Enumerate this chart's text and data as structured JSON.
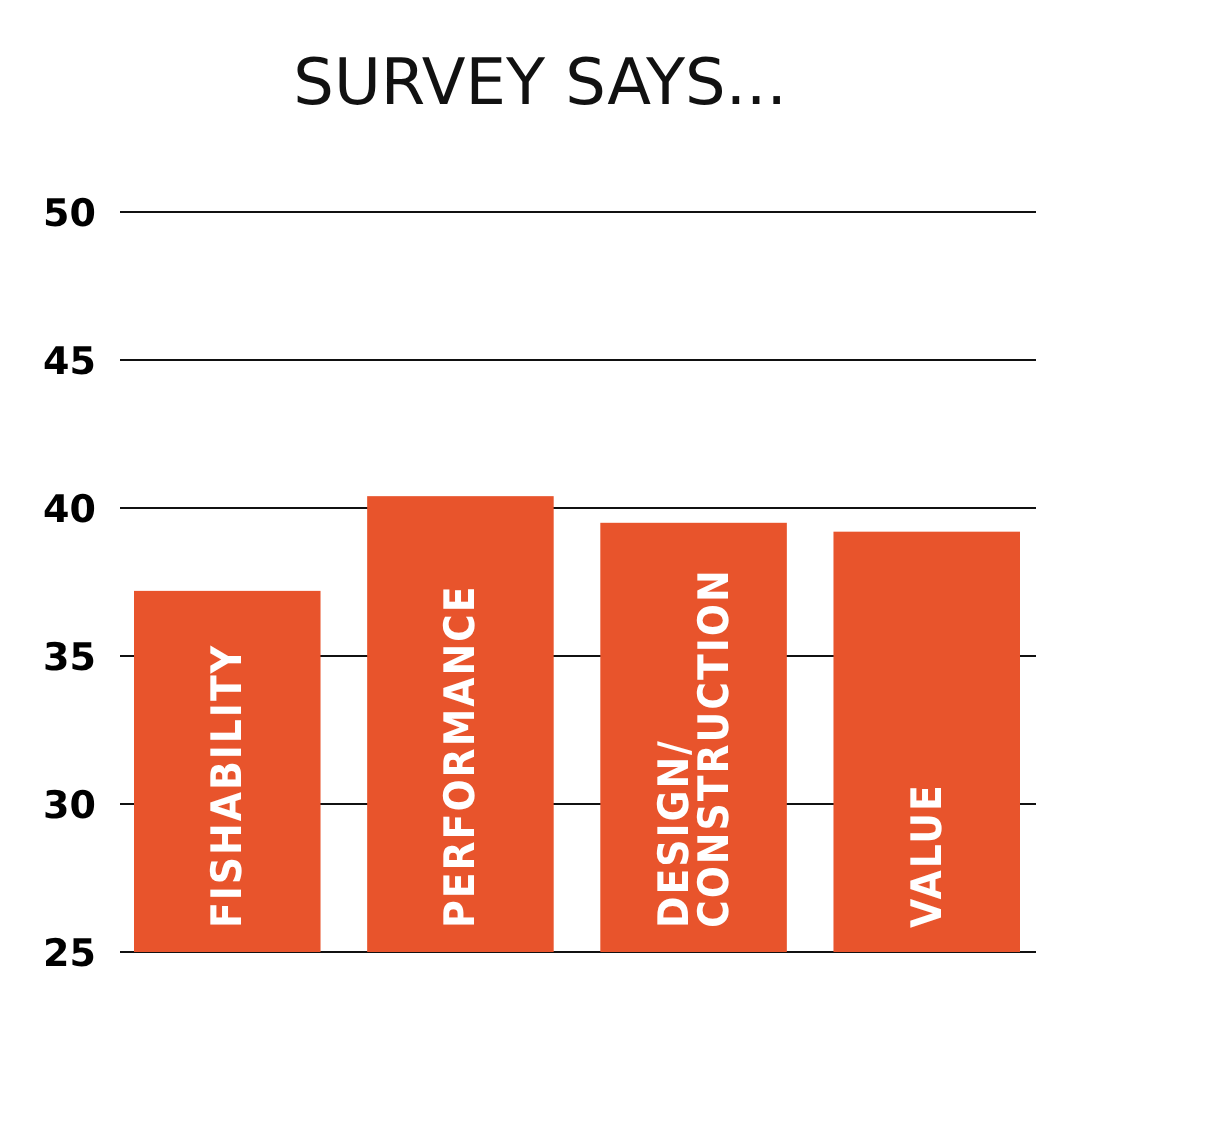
{
  "chart_data": {
    "type": "bar",
    "title": "SURVEY SAYS...",
    "categories": [
      "FISHABILITY",
      "PERFORMANCE",
      "DESIGN/CONSTRUCTION",
      "VALUE"
    ],
    "values": [
      37.2,
      40.4,
      39.5,
      39.2
    ],
    "color": "#e8542c",
    "ylim": [
      25,
      50
    ],
    "yticks": [
      25,
      30,
      35,
      40,
      45,
      50
    ],
    "grid": "y"
  }
}
